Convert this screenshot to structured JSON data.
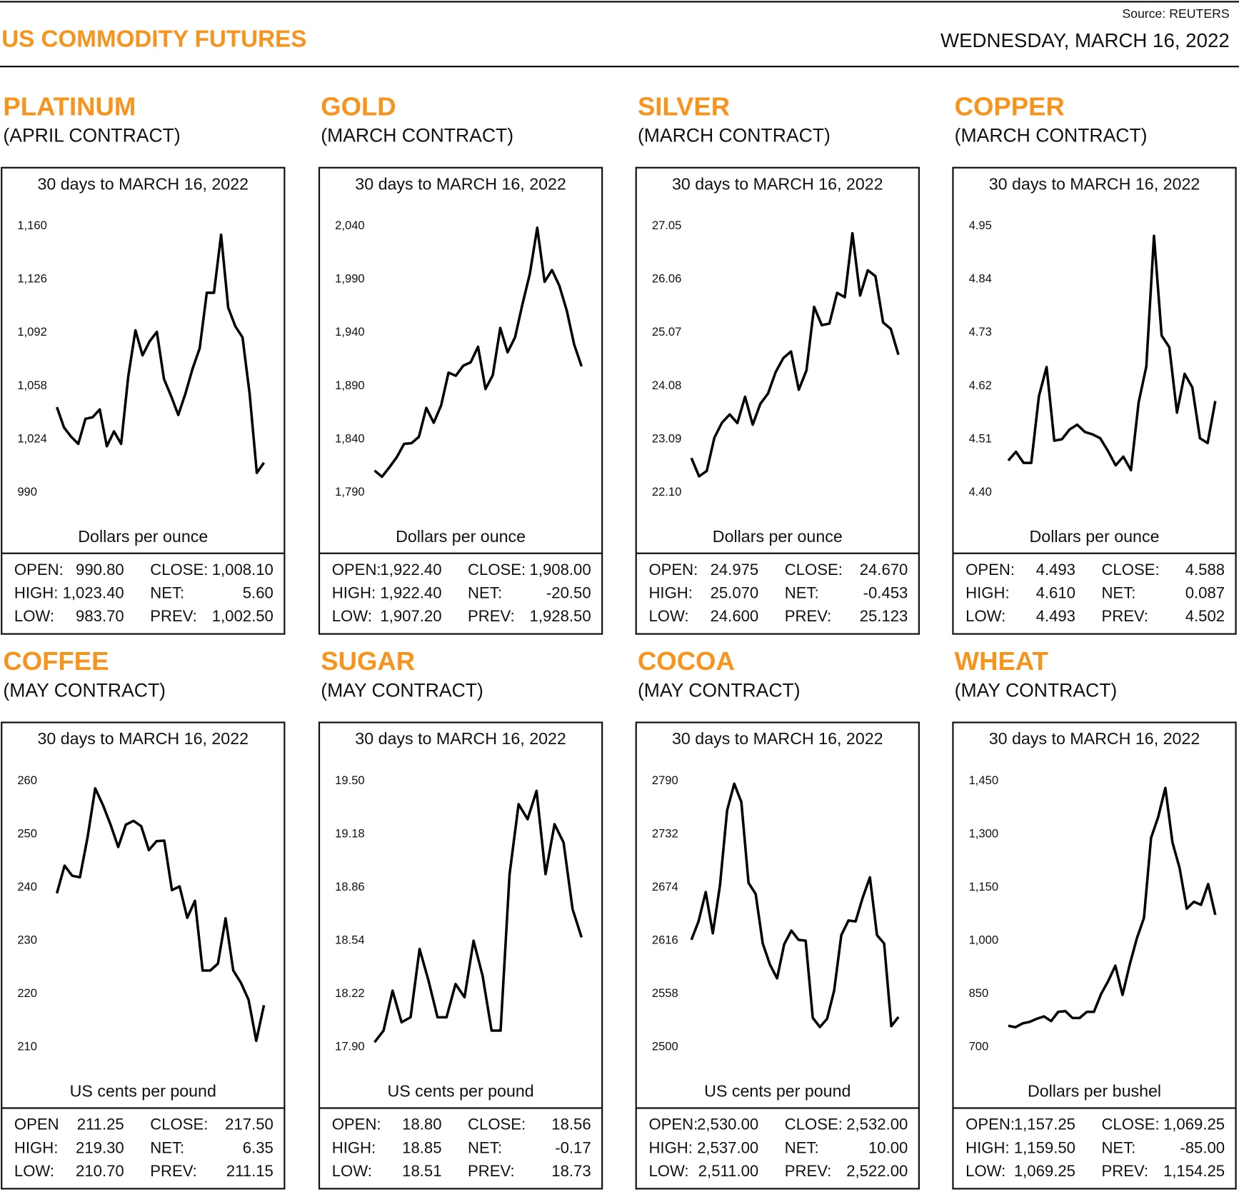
{
  "header": {
    "title": "US COMMODITY FUTURES",
    "source": "Source: REUTERS",
    "date": "WEDNESDAY, MARCH 16, 2022"
  },
  "chart_data": [
    {
      "type": "line",
      "title": "PLATINUM",
      "subtitle": "(APRIL CONTRACT)",
      "note": "30 days to MARCH 16, 2022",
      "unit": "Dollars per ounce",
      "color": "#000000",
      "ylim": [
        990,
        1160
      ],
      "yticks": [
        990,
        {
          "value": 1024,
          "label": "1,024"
        },
        {
          "value": 1058,
          "label": "1,058"
        },
        {
          "value": 1092,
          "label": "1,092"
        },
        {
          "value": 1126,
          "label": "1,126"
        },
        {
          "value": 1160,
          "label": "1,160"
        }
      ],
      "values": [
        1044.5,
        1031.5,
        1025.5,
        1021,
        1037,
        1038,
        1043,
        1019.5,
        1029,
        1021,
        1064,
        1093.5,
        1077.5,
        1086.5,
        1092.5,
        1062.5,
        1051.5,
        1039.5,
        1053,
        1069,
        1082,
        1117.5,
        1117.5,
        1154.5,
        1108,
        1096,
        1089,
        1053,
        1002.5,
        1009
      ],
      "stats": [
        [
          "OPEN:",
          "990.80",
          "CLOSE:",
          "1,008.10"
        ],
        [
          "HIGH:",
          "1,023.40",
          "NET:",
          "5.60"
        ],
        [
          "LOW:",
          "983.70",
          "PREV:",
          "1,002.50"
        ]
      ]
    },
    {
      "type": "line",
      "title": "GOLD",
      "subtitle": "(MARCH CONTRACT)",
      "note": "30 days to MARCH 16, 2022",
      "unit": "Dollars per ounce",
      "color": "#000000",
      "ylim": [
        1790,
        2040
      ],
      "yticks": [
        {
          "value": 1790,
          "label": "1,790"
        },
        {
          "value": 1840,
          "label": "1,840"
        },
        {
          "value": 1890,
          "label": "1,890"
        },
        {
          "value": 1940,
          "label": "1,940"
        },
        {
          "value": 1990,
          "label": "1,990"
        },
        {
          "value": 2040,
          "label": "2,040"
        }
      ],
      "values": [
        1810.6,
        1804.7,
        1813.5,
        1823.1,
        1835.6,
        1836.3,
        1842.2,
        1869.4,
        1855.4,
        1871.6,
        1902.5,
        1899.6,
        1909.1,
        1912.1,
        1926.8,
        1887.1,
        1900.3,
        1944.4,
        1921.6,
        1935.6,
        1966.5,
        1995.1,
        2038.5,
        1987.8,
        1998.8,
        1984.1,
        1960.6,
        1929,
        1908.4
      ],
      "stats": [
        [
          "OPEN:",
          "1,922.40",
          "CLOSE:",
          "1,908.00"
        ],
        [
          "HIGH:",
          "1,922.40",
          "NET:",
          "-20.50"
        ],
        [
          "LOW:",
          "1,907.20",
          "PREV:",
          "1,928.50"
        ]
      ]
    },
    {
      "type": "line",
      "title": "SILVER",
      "subtitle": "(MARCH CONTRACT)",
      "note": "30 days to MARCH 16, 2022",
      "unit": "Dollars per ounce",
      "color": "#000000",
      "ylim": [
        22.1,
        27.05
      ],
      "yticks": [
        {
          "value": 22.1,
          "label": "22.10"
        },
        23.09,
        24.08,
        25.07,
        26.06,
        27.05
      ],
      "values": [
        22.74,
        22.4,
        22.5,
        23.12,
        23.4,
        23.55,
        23.39,
        23.88,
        23.36,
        23.75,
        23.94,
        24.34,
        24.6,
        24.72,
        24.01,
        24.37,
        25.55,
        25.21,
        25.24,
        25.81,
        25.73,
        26.92,
        25.76,
        26.23,
        26.12,
        25.26,
        25.14,
        24.66
      ],
      "stats": [
        [
          "OPEN:",
          "24.975",
          "CLOSE:",
          "24.670"
        ],
        [
          "HIGH:",
          "25.070",
          "NET:",
          "-0.453"
        ],
        [
          "LOW:",
          "24.600",
          "PREV:",
          "25.123"
        ]
      ]
    },
    {
      "type": "line",
      "title": "COPPER",
      "subtitle": "(MARCH CONTRACT)",
      "note": "30 days to MARCH 16, 2022",
      "unit": "Dollars per ounce",
      "color": "#000000",
      "ylim": [
        4.4,
        4.95
      ],
      "yticks": [
        {
          "value": 4.4,
          "label": "4.40"
        },
        4.51,
        4.62,
        4.73,
        4.84,
        4.95
      ],
      "values": [
        4.466,
        4.484,
        4.461,
        4.461,
        4.599,
        4.659,
        4.507,
        4.51,
        4.53,
        4.54,
        4.525,
        4.52,
        4.512,
        4.486,
        4.456,
        4.474,
        4.446,
        4.586,
        4.66,
        4.93,
        4.724,
        4.7,
        4.565,
        4.645,
        4.617,
        4.512,
        4.502,
        4.589
      ],
      "stats": [
        [
          "OPEN:",
          "4.493",
          "CLOSE:",
          "4.588"
        ],
        [
          "HIGH:",
          "4.610",
          "NET:",
          "0.087"
        ],
        [
          "LOW:",
          "4.493",
          "PREV:",
          "4.502"
        ]
      ]
    },
    {
      "type": "line",
      "title": "COFFEE",
      "subtitle": "(MAY CONTRACT)",
      "note": "30 days to MARCH 16, 2022",
      "unit": "US cents per pound",
      "color": "#000000",
      "ylim": [
        210,
        260
      ],
      "yticks": [
        210,
        220,
        230,
        240,
        250,
        260
      ],
      "values": [
        238.9,
        244.1,
        242.2,
        241.9,
        249.4,
        258.6,
        255.5,
        251.8,
        247.6,
        251.8,
        252.5,
        251.5,
        247,
        248.7,
        248.8,
        239.5,
        240.2,
        234.3,
        237.5,
        224.4,
        224.4,
        225.7,
        234.2,
        224.4,
        222.1,
        218.9,
        211.2,
        217.9
      ],
      "stats": [
        [
          "OPEN",
          "211.25",
          "CLOSE:",
          "217.50"
        ],
        [
          "HIGH:",
          "219.30",
          "NET:",
          "6.35"
        ],
        [
          "LOW:",
          "210.70",
          "PREV:",
          "211.15"
        ]
      ]
    },
    {
      "type": "line",
      "title": "SUGAR",
      "subtitle": "(MAY CONTRACT)",
      "note": "30 days to MARCH 16, 2022",
      "unit": "US cents per pound",
      "color": "#000000",
      "ylim": [
        17.9,
        19.5
      ],
      "yticks": [
        {
          "value": 17.9,
          "label": "17.90"
        },
        18.22,
        18.54,
        18.86,
        19.18,
        {
          "value": 19.5,
          "label": "19.50"
        }
      ],
      "values": [
        17.93,
        18.0,
        18.24,
        18.05,
        18.08,
        18.49,
        18.3,
        18.08,
        18.08,
        18.28,
        18.2,
        18.54,
        18.33,
        18.0,
        18.0,
        18.94,
        19.36,
        19.27,
        19.44,
        18.94,
        19.24,
        19.13,
        18.73,
        18.56
      ],
      "stats": [
        [
          "OPEN:",
          "18.80",
          "CLOSE:",
          "18.56"
        ],
        [
          "HIGH:",
          "18.85",
          "NET:",
          "-0.17"
        ],
        [
          "LOW:",
          "18.51",
          "PREV:",
          "18.73"
        ]
      ]
    },
    {
      "type": "line",
      "title": "COCOA",
      "subtitle": "(MAY CONTRACT)",
      "note": "30 days to MARCH 16, 2022",
      "unit": "US cents per pound",
      "color": "#000000",
      "ylim": [
        2500,
        2790
      ],
      "yticks": [
        2500,
        2558,
        2616,
        2674,
        2732,
        2790
      ],
      "values": [
        2617,
        2637,
        2669,
        2624,
        2676,
        2758,
        2787,
        2767,
        2679,
        2667,
        2613,
        2590,
        2575,
        2612,
        2627,
        2617,
        2616,
        2532,
        2522,
        2531,
        2562,
        2622,
        2638,
        2637,
        2663,
        2685,
        2622,
        2613,
        2523,
        2533
      ],
      "stats": [
        [
          "OPEN:",
          "2,530.00",
          "CLOSE:",
          "2,532.00"
        ],
        [
          "HIGH:",
          "2,537.00",
          "NET:",
          "10.00"
        ],
        [
          "LOW:",
          "2,511.00",
          "PREV:",
          "2,522.00"
        ]
      ]
    },
    {
      "type": "line",
      "title": "WHEAT",
      "subtitle": "(MAY CONTRACT)",
      "note": "30 days to MARCH 16, 2022",
      "unit": "Dollars per bushel",
      "color": "#000000",
      "ylim": [
        700,
        1450
      ],
      "yticks": [
        700,
        850,
        {
          "value": 1000,
          "label": "1,000"
        },
        {
          "value": 1150,
          "label": "1,150"
        },
        {
          "value": 1300,
          "label": "1,300"
        },
        {
          "value": 1450,
          "label": "1,450"
        }
      ],
      "values": [
        760.6,
        756.3,
        767.1,
        771.5,
        780.2,
        786.7,
        773.6,
        799.7,
        801.8,
        782.3,
        782.3,
        799.7,
        799.7,
        849.5,
        886.4,
        929.7,
        847.4,
        931.9,
        1005.6,
        1064.1,
        1289.6,
        1348.1,
        1430.5,
        1276.6,
        1205,
        1090.1,
        1109.7,
        1101,
        1159.5,
        1072.8
      ],
      "stats": [
        [
          "OPEN:",
          "1,157.25",
          "CLOSE:",
          "1,069.25"
        ],
        [
          "HIGH:",
          "1,159.50",
          "NET:",
          "-85.00"
        ],
        [
          "LOW:",
          "1,069.25",
          "PREV:",
          "1,154.25"
        ]
      ]
    }
  ]
}
